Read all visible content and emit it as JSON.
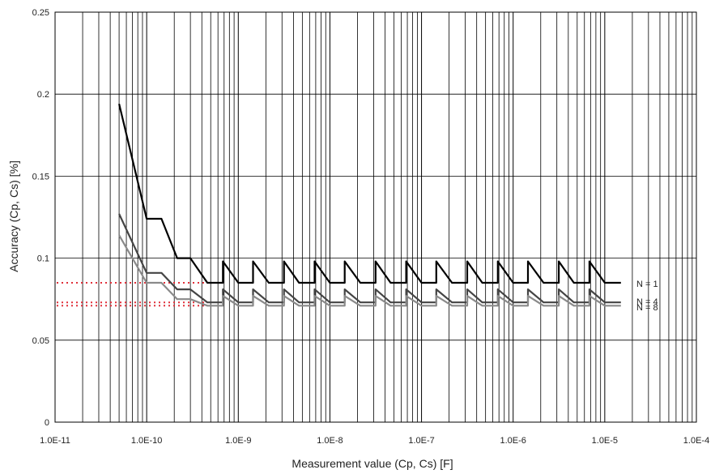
{
  "chart_data": {
    "type": "line",
    "title": "",
    "xlabel": "Measurement value (Cp, Cs) [F]",
    "ylabel": "Accuracy (Cp, Cs) [%]",
    "x_scale": "log",
    "xlim": [
      1e-11,
      0.0001
    ],
    "ylim": [
      0,
      0.25
    ],
    "grid": true,
    "x_tick_labels": [
      "1.0E-11",
      "1.0E-10",
      "1.0E-9",
      "1.0E-8",
      "1.0E-7",
      "1.0E-6",
      "1.0E-5",
      "1.0E-4"
    ],
    "y_tick_labels": [
      "0",
      "0.05",
      "0.1",
      "0.15",
      "0.2",
      "0.25"
    ],
    "series": [
      {
        "name": "N = 1",
        "color": "#000000",
        "points": [
          [
            5e-11,
            0.194
          ],
          [
            1e-10,
            0.124
          ],
          [
            1.45e-10,
            0.124
          ],
          [
            2.15e-10,
            0.1
          ],
          [
            3e-10,
            0.1
          ],
          [
            4.6e-10,
            0.085
          ],
          [
            6.8e-10,
            0.085
          ],
          [
            6.8e-10,
            0.098
          ],
          [
            1e-09,
            0.085
          ],
          [
            1.45e-09,
            0.085
          ],
          [
            1.45e-09,
            0.098
          ],
          [
            2.15e-09,
            0.085
          ],
          [
            3.15e-09,
            0.085
          ],
          [
            3.15e-09,
            0.098
          ],
          [
            4.6e-09,
            0.085
          ],
          [
            6.8e-09,
            0.085
          ],
          [
            6.8e-09,
            0.098
          ],
          [
            1e-08,
            0.085
          ],
          [
            1.45e-08,
            0.085
          ],
          [
            1.45e-08,
            0.098
          ],
          [
            2.15e-08,
            0.085
          ],
          [
            3.15e-08,
            0.085
          ],
          [
            3.15e-08,
            0.098
          ],
          [
            4.6e-08,
            0.085
          ],
          [
            6.8e-08,
            0.085
          ],
          [
            6.8e-08,
            0.098
          ],
          [
            1e-07,
            0.085
          ],
          [
            1.45e-07,
            0.085
          ],
          [
            1.45e-07,
            0.098
          ],
          [
            2.15e-07,
            0.085
          ],
          [
            3.15e-07,
            0.085
          ],
          [
            3.15e-07,
            0.098
          ],
          [
            4.6e-07,
            0.085
          ],
          [
            6.8e-07,
            0.085
          ],
          [
            6.8e-07,
            0.098
          ],
          [
            1e-06,
            0.085
          ],
          [
            1.45e-06,
            0.085
          ],
          [
            1.45e-06,
            0.098
          ],
          [
            2.15e-06,
            0.085
          ],
          [
            3.15e-06,
            0.085
          ],
          [
            3.15e-06,
            0.098
          ],
          [
            4.6e-06,
            0.085
          ],
          [
            6.8e-06,
            0.085
          ],
          [
            6.8e-06,
            0.098
          ],
          [
            1e-05,
            0.085
          ],
          [
            1.5e-05,
            0.085
          ]
        ]
      },
      {
        "name": "N = 4",
        "color": "#444444",
        "points": [
          [
            5e-11,
            0.127
          ],
          [
            1e-10,
            0.091
          ],
          [
            1.45e-10,
            0.091
          ],
          [
            2.15e-10,
            0.081
          ],
          [
            3e-10,
            0.081
          ],
          [
            4.6e-10,
            0.073
          ],
          [
            6.8e-10,
            0.073
          ],
          [
            6.8e-10,
            0.081
          ],
          [
            1e-09,
            0.073
          ],
          [
            1.45e-09,
            0.073
          ],
          [
            1.45e-09,
            0.081
          ],
          [
            2.15e-09,
            0.073
          ],
          [
            3.15e-09,
            0.073
          ],
          [
            3.15e-09,
            0.081
          ],
          [
            4.6e-09,
            0.073
          ],
          [
            6.8e-09,
            0.073
          ],
          [
            6.8e-09,
            0.081
          ],
          [
            1e-08,
            0.073
          ],
          [
            1.45e-08,
            0.073
          ],
          [
            1.45e-08,
            0.081
          ],
          [
            2.15e-08,
            0.073
          ],
          [
            3.15e-08,
            0.073
          ],
          [
            3.15e-08,
            0.081
          ],
          [
            4.6e-08,
            0.073
          ],
          [
            6.8e-08,
            0.073
          ],
          [
            6.8e-08,
            0.081
          ],
          [
            1e-07,
            0.073
          ],
          [
            1.45e-07,
            0.073
          ],
          [
            1.45e-07,
            0.081
          ],
          [
            2.15e-07,
            0.073
          ],
          [
            3.15e-07,
            0.073
          ],
          [
            3.15e-07,
            0.081
          ],
          [
            4.6e-07,
            0.073
          ],
          [
            6.8e-07,
            0.073
          ],
          [
            6.8e-07,
            0.081
          ],
          [
            1e-06,
            0.073
          ],
          [
            1.45e-06,
            0.073
          ],
          [
            1.45e-06,
            0.081
          ],
          [
            2.15e-06,
            0.073
          ],
          [
            3.15e-06,
            0.073
          ],
          [
            3.15e-06,
            0.081
          ],
          [
            4.6e-06,
            0.073
          ],
          [
            6.8e-06,
            0.073
          ],
          [
            6.8e-06,
            0.081
          ],
          [
            1e-05,
            0.073
          ],
          [
            1.5e-05,
            0.073
          ]
        ]
      },
      {
        "name": "N = 8",
        "color": "#8a8a8a",
        "points": [
          [
            5e-11,
            0.114
          ],
          [
            1e-10,
            0.085
          ],
          [
            1.45e-10,
            0.085
          ],
          [
            2.15e-10,
            0.075
          ],
          [
            3e-10,
            0.075
          ],
          [
            4.6e-10,
            0.071
          ],
          [
            6.8e-10,
            0.071
          ],
          [
            6.8e-10,
            0.077
          ],
          [
            1e-09,
            0.071
          ],
          [
            1.45e-09,
            0.071
          ],
          [
            1.45e-09,
            0.077
          ],
          [
            2.15e-09,
            0.071
          ],
          [
            3.15e-09,
            0.071
          ],
          [
            3.15e-09,
            0.077
          ],
          [
            4.6e-09,
            0.071
          ],
          [
            6.8e-09,
            0.071
          ],
          [
            6.8e-09,
            0.077
          ],
          [
            1e-08,
            0.071
          ],
          [
            1.45e-08,
            0.071
          ],
          [
            1.45e-08,
            0.077
          ],
          [
            2.15e-08,
            0.071
          ],
          [
            3.15e-08,
            0.071
          ],
          [
            3.15e-08,
            0.077
          ],
          [
            4.6e-08,
            0.071
          ],
          [
            6.8e-08,
            0.071
          ],
          [
            6.8e-08,
            0.077
          ],
          [
            1e-07,
            0.071
          ],
          [
            1.45e-07,
            0.071
          ],
          [
            1.45e-07,
            0.077
          ],
          [
            2.15e-07,
            0.071
          ],
          [
            3.15e-07,
            0.071
          ],
          [
            3.15e-07,
            0.077
          ],
          [
            4.6e-07,
            0.071
          ],
          [
            6.8e-07,
            0.071
          ],
          [
            6.8e-07,
            0.077
          ],
          [
            1e-06,
            0.071
          ],
          [
            1.45e-06,
            0.071
          ],
          [
            1.45e-06,
            0.077
          ],
          [
            2.15e-06,
            0.071
          ],
          [
            3.15e-06,
            0.071
          ],
          [
            3.15e-06,
            0.077
          ],
          [
            4.6e-06,
            0.071
          ],
          [
            6.8e-06,
            0.071
          ],
          [
            6.8e-06,
            0.077
          ],
          [
            1e-05,
            0.071
          ],
          [
            1.5e-05,
            0.071
          ]
        ]
      }
    ],
    "reference_lines": [
      {
        "y": 0.085,
        "x_from": 1e-11,
        "x_to": 4.6e-10,
        "color": "#e0303a",
        "style": "dotted"
      },
      {
        "y": 0.073,
        "x_from": 1e-11,
        "x_to": 4.6e-10,
        "color": "#e0303a",
        "style": "dotted"
      },
      {
        "y": 0.071,
        "x_from": 1e-11,
        "x_to": 4.6e-10,
        "color": "#e0303a",
        "style": "dotted"
      }
    ]
  }
}
